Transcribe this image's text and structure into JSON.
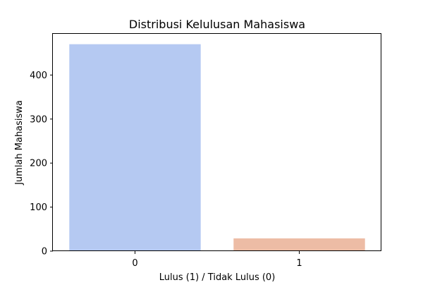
{
  "chart_data": {
    "type": "bar",
    "title": "Distribusi Kelulusan Mahasiswa",
    "xlabel": "Lulus (1) / Tidak Lulus (0)",
    "ylabel": "Jumlah Mahasiswa",
    "categories": [
      "0",
      "1"
    ],
    "values": [
      470,
      29
    ],
    "colors": [
      "#b5c9f2",
      "#edbca5"
    ],
    "ylim": [
      0,
      493.5
    ],
    "yticks": [
      0,
      100,
      200,
      300,
      400
    ],
    "grid": false,
    "legend": "none"
  }
}
